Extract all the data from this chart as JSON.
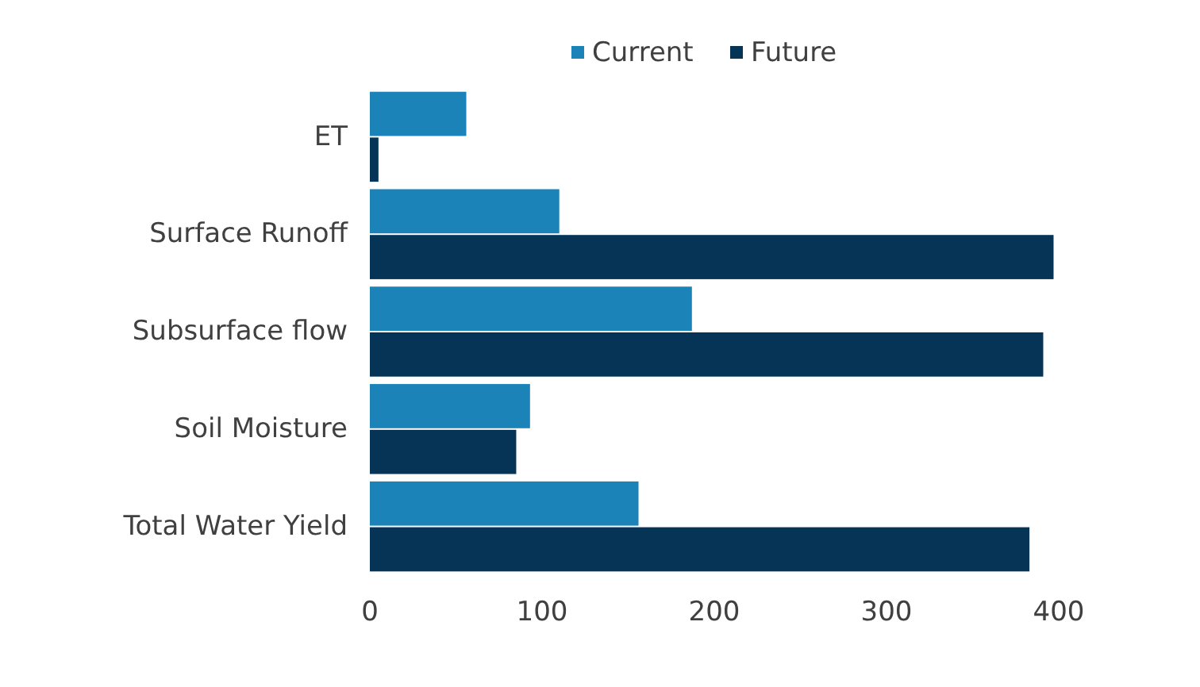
{
  "chart_data": {
    "type": "bar",
    "orientation": "horizontal",
    "categories": [
      "ET",
      "Surface Runoff",
      "Subsurface flow",
      "Soil Moisture",
      "Total Water Yield"
    ],
    "series": [
      {
        "name": "Current",
        "color": "#1b83b7",
        "values": [
          56,
          110,
          187,
          93,
          156
        ]
      },
      {
        "name": "Future",
        "color": "#053457",
        "values": [
          5,
          397,
          391,
          85,
          383
        ]
      }
    ],
    "xlim": [
      0,
      400
    ],
    "xticks": [
      0,
      100,
      200,
      300,
      400
    ],
    "grid": false,
    "legend": "top"
  }
}
